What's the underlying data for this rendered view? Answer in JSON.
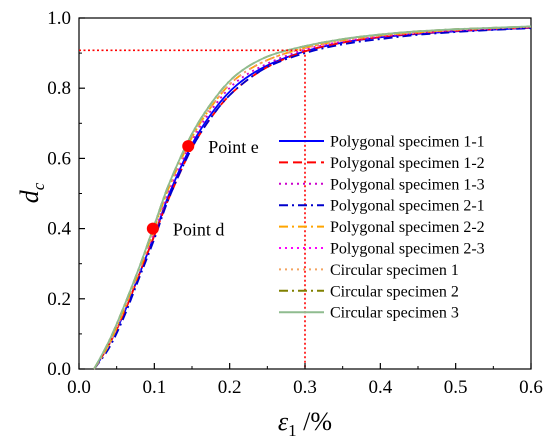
{
  "chart_data": {
    "type": "line",
    "xlabel": {
      "symbol": "ε",
      "sub": "1",
      "unit": " /%"
    },
    "ylabel": {
      "symbol": "d",
      "sub": "c"
    },
    "xlim": [
      0.0,
      0.6
    ],
    "ylim": [
      0.0,
      1.0
    ],
    "xticks": [
      "0.0",
      "0.1",
      "0.2",
      "0.3",
      "0.4",
      "0.5",
      "0.6"
    ],
    "yticks": [
      "0.0",
      "0.2",
      "0.4",
      "0.6",
      "0.8",
      "1.0"
    ],
    "grid": false,
    "legend_position": "right",
    "series": [
      {
        "name": "Polygonal specimen 1-1",
        "color": "#0000ff",
        "dash": "solid",
        "x": [
          0.02,
          0.04,
          0.06,
          0.08,
          0.1,
          0.12,
          0.15,
          0.18,
          0.21,
          0.25,
          0.3,
          0.35,
          0.4,
          0.45,
          0.5,
          0.55,
          0.6
        ],
        "y": [
          0.0,
          0.07,
          0.16,
          0.27,
          0.38,
          0.5,
          0.64,
          0.74,
          0.81,
          0.865,
          0.905,
          0.93,
          0.945,
          0.955,
          0.962,
          0.967,
          0.972
        ]
      },
      {
        "name": "Polygonal specimen 1-2",
        "color": "#ff0000",
        "dash": "dash",
        "x": [
          0.02,
          0.04,
          0.06,
          0.08,
          0.1,
          0.12,
          0.15,
          0.18,
          0.21,
          0.25,
          0.3,
          0.35,
          0.4,
          0.45,
          0.5,
          0.55,
          0.6
        ],
        "y": [
          0.0,
          0.07,
          0.16,
          0.27,
          0.38,
          0.49,
          0.63,
          0.73,
          0.8,
          0.86,
          0.905,
          0.93,
          0.946,
          0.956,
          0.963,
          0.968,
          0.973
        ]
      },
      {
        "name": "Polygonal specimen 1-3",
        "color": "#cc00cc",
        "dash": "dot",
        "x": [
          0.02,
          0.04,
          0.06,
          0.08,
          0.1,
          0.12,
          0.15,
          0.18,
          0.21,
          0.25,
          0.3,
          0.35,
          0.4,
          0.45,
          0.5,
          0.55,
          0.6
        ],
        "y": [
          0.0,
          0.07,
          0.17,
          0.28,
          0.39,
          0.51,
          0.65,
          0.75,
          0.82,
          0.87,
          0.91,
          0.933,
          0.947,
          0.957,
          0.964,
          0.969,
          0.974
        ]
      },
      {
        "name": "Polygonal specimen 2-1",
        "color": "#0000cc",
        "dash": "dashdot",
        "x": [
          0.02,
          0.04,
          0.06,
          0.08,
          0.1,
          0.12,
          0.15,
          0.18,
          0.21,
          0.25,
          0.3,
          0.35,
          0.4,
          0.45,
          0.5,
          0.55,
          0.6
        ],
        "y": [
          0.0,
          0.06,
          0.15,
          0.26,
          0.37,
          0.49,
          0.63,
          0.73,
          0.8,
          0.86,
          0.9,
          0.925,
          0.94,
          0.952,
          0.96,
          0.966,
          0.971
        ]
      },
      {
        "name": "Polygonal specimen 2-2",
        "color": "#ffa500",
        "dash": "dashdot",
        "x": [
          0.02,
          0.04,
          0.06,
          0.08,
          0.1,
          0.12,
          0.15,
          0.18,
          0.21,
          0.25,
          0.3,
          0.35,
          0.4,
          0.45,
          0.5,
          0.55,
          0.6
        ],
        "y": [
          0.0,
          0.07,
          0.17,
          0.28,
          0.4,
          0.52,
          0.66,
          0.76,
          0.83,
          0.88,
          0.915,
          0.936,
          0.95,
          0.959,
          0.966,
          0.971,
          0.975
        ]
      },
      {
        "name": "Polygonal specimen 2-3",
        "color": "#ff00ff",
        "dash": "dot",
        "x": [
          0.02,
          0.04,
          0.06,
          0.08,
          0.1,
          0.12,
          0.15,
          0.18,
          0.21,
          0.25,
          0.3,
          0.35,
          0.4,
          0.45,
          0.5,
          0.55,
          0.6
        ],
        "y": [
          0.0,
          0.07,
          0.17,
          0.28,
          0.4,
          0.52,
          0.66,
          0.76,
          0.83,
          0.88,
          0.914,
          0.935,
          0.949,
          0.958,
          0.965,
          0.97,
          0.974
        ]
      },
      {
        "name": "Circular specimen 1",
        "color": "#f4a460",
        "dash": "dot",
        "x": [
          0.02,
          0.04,
          0.06,
          0.08,
          0.1,
          0.12,
          0.15,
          0.18,
          0.21,
          0.25,
          0.3,
          0.35,
          0.4,
          0.45,
          0.5,
          0.55,
          0.6
        ],
        "y": [
          0.0,
          0.07,
          0.17,
          0.28,
          0.4,
          0.52,
          0.66,
          0.76,
          0.83,
          0.88,
          0.915,
          0.936,
          0.95,
          0.959,
          0.966,
          0.971,
          0.975
        ]
      },
      {
        "name": "Circular specimen 2",
        "color": "#808000",
        "dash": "dashdot",
        "x": [
          0.02,
          0.04,
          0.06,
          0.08,
          0.1,
          0.12,
          0.15,
          0.18,
          0.21,
          0.25,
          0.3,
          0.35,
          0.4,
          0.45,
          0.5,
          0.55,
          0.6
        ],
        "y": [
          0.0,
          0.08,
          0.18,
          0.29,
          0.41,
          0.53,
          0.67,
          0.77,
          0.84,
          0.89,
          0.92,
          0.94,
          0.953,
          0.962,
          0.968,
          0.972,
          0.976
        ]
      },
      {
        "name": "Circular specimen 3",
        "color": "#8fbc8f",
        "dash": "solid",
        "x": [
          0.02,
          0.04,
          0.06,
          0.08,
          0.1,
          0.12,
          0.15,
          0.18,
          0.21,
          0.25,
          0.3,
          0.35,
          0.4,
          0.45,
          0.5,
          0.55,
          0.6
        ],
        "y": [
          0.0,
          0.08,
          0.18,
          0.29,
          0.41,
          0.53,
          0.67,
          0.77,
          0.84,
          0.89,
          0.92,
          0.94,
          0.953,
          0.962,
          0.968,
          0.972,
          0.976
        ]
      }
    ],
    "annotations": {
      "points": [
        {
          "label": "Point d",
          "x": 0.098,
          "y": 0.4,
          "color": "#ff0000"
        },
        {
          "label": "Point e",
          "x": 0.145,
          "y": 0.635,
          "color": "#ff0000"
        }
      ],
      "reference_lines": {
        "x": 0.3,
        "y": 0.908,
        "color": "#ff0000",
        "style": "dotted"
      }
    }
  }
}
